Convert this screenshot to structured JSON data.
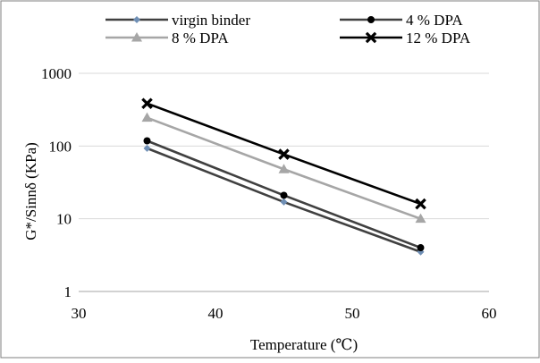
{
  "chart_data": {
    "type": "line",
    "xlabel": "Temperature (℃)",
    "ylabel": "G*/Sinnδ (KPa)",
    "xlim": [
      30,
      60
    ],
    "ylim": [
      1,
      1000
    ],
    "y_scale": "log",
    "x_ticks": [
      "30",
      "40",
      "50",
      "60"
    ],
    "y_ticks": [
      "1",
      "10",
      "100",
      "1000"
    ],
    "grid": "horizontal",
    "legend_position": "top",
    "series": [
      {
        "name": "virgin binder",
        "x": [
          35,
          45,
          55
        ],
        "y": [
          93,
          17,
          3.5
        ],
        "line_color": "#404040",
        "marker_color": "#6f8fb5",
        "marker": "diamond"
      },
      {
        "name": "4 % DPA",
        "x": [
          35,
          45,
          55
        ],
        "y": [
          118,
          21,
          4.0
        ],
        "line_color": "#404040",
        "marker_color": "#000000",
        "marker": "circle"
      },
      {
        "name": "8 % DPA",
        "x": [
          35,
          45,
          55
        ],
        "y": [
          245,
          48,
          10
        ],
        "line_color": "#a6a6a6",
        "marker_color": "#a6a6a6",
        "marker": "triangle"
      },
      {
        "name": "12 % DPA",
        "x": [
          35,
          45,
          55
        ],
        "y": [
          385,
          77,
          16
        ],
        "line_color": "#000000",
        "marker_color": "#000000",
        "marker": "x"
      }
    ]
  }
}
